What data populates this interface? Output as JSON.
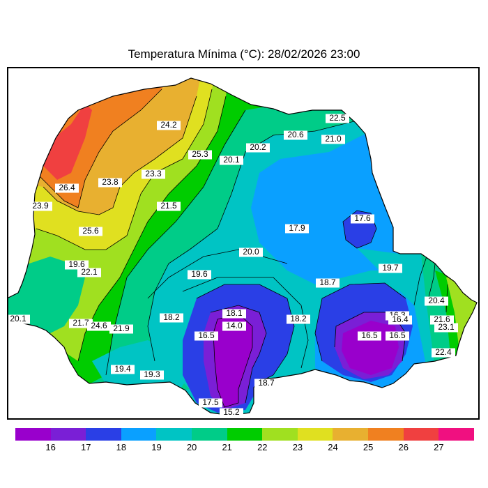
{
  "title": "Temperatura Mínima (°C): 28/02/2026 23:00",
  "colorbar": {
    "colors": [
      "#9900cc",
      "#7a1fd6",
      "#2a3fe6",
      "#0aa0ff",
      "#00c4c4",
      "#00cc88",
      "#00cc00",
      "#a0e020",
      "#e0e020",
      "#e8b030",
      "#f08020",
      "#f04040",
      "#f01080"
    ],
    "ticks": [
      "16",
      "17",
      "18",
      "19",
      "20",
      "21",
      "22",
      "23",
      "24",
      "25",
      "26",
      "27"
    ]
  },
  "region_colors": {
    "c15": "#9900cc",
    "c16": "#7a1fd6",
    "c17": "#2a3fe6",
    "c18": "#0aa0ff",
    "c19": "#00c4c4",
    "c20": "#00cc88",
    "c21": "#00cc00",
    "c22": "#a0e020",
    "c23": "#e0e020",
    "c24": "#e8b030",
    "c25": "#f08020",
    "c26": "#f04040"
  },
  "contour_labels": [
    {
      "text": "22.5"
    },
    {
      "text": "24.2"
    },
    {
      "text": "20.6"
    },
    {
      "text": "21.0"
    },
    {
      "text": "20.2"
    },
    {
      "text": "25.3"
    },
    {
      "text": "20.1"
    },
    {
      "text": "23.3"
    },
    {
      "text": "26.4"
    },
    {
      "text": "23.8"
    },
    {
      "text": "23.9"
    },
    {
      "text": "21.5"
    },
    {
      "text": "17.6"
    },
    {
      "text": "17.9"
    },
    {
      "text": "25.6"
    },
    {
      "text": "20.0"
    },
    {
      "text": "19.6"
    },
    {
      "text": "22.1"
    },
    {
      "text": "19.7"
    },
    {
      "text": "19.6"
    },
    {
      "text": "18.7"
    },
    {
      "text": "20.4"
    },
    {
      "text": "18.1"
    },
    {
      "text": "16.3"
    },
    {
      "text": "20.1"
    },
    {
      "text": "18.2"
    },
    {
      "text": "21.7"
    },
    {
      "text": "24.6"
    },
    {
      "text": "21.9"
    },
    {
      "text": "14.0"
    },
    {
      "text": "18.2"
    },
    {
      "text": "16.4"
    },
    {
      "text": "21.6"
    },
    {
      "text": "23.1"
    },
    {
      "text": "16.5"
    },
    {
      "text": "16.5"
    },
    {
      "text": "16.5"
    },
    {
      "text": "22.4"
    },
    {
      "text": "19.4"
    },
    {
      "text": "19.3"
    },
    {
      "text": "18.7"
    },
    {
      "text": "17.5"
    },
    {
      "text": "15.2"
    }
  ]
}
